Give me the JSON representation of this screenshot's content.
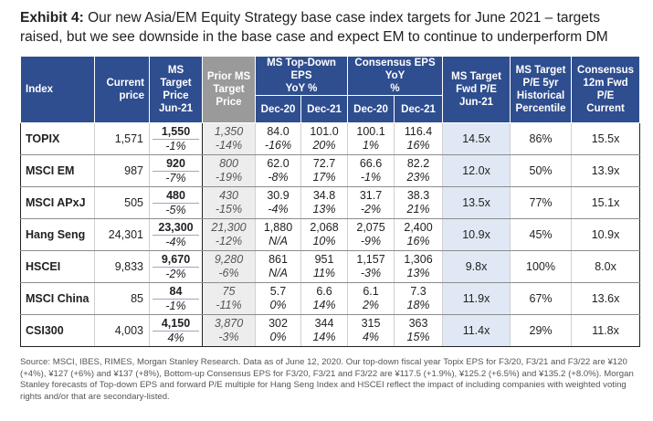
{
  "title": {
    "lead": "Exhibit 4:",
    "text": "Our new Asia/EM Equity Strategy base case index targets for June 2021 – targets raised, but we see downside in the base case and expect EM to continue to underperform DM"
  },
  "headers": {
    "index": "Index",
    "current_price_1": "Current",
    "current_price_2": "price",
    "ms_target_1": "MS",
    "ms_target_2": "Target",
    "ms_target_3": "Price",
    "ms_target_4": "Jun-21",
    "prior_1": "Prior MS",
    "prior_2": "Target",
    "prior_3": "Price",
    "ms_eps_1": "MS Top-Down EPS",
    "ms_eps_2": "YoY %",
    "cons_eps_1": "Consensus EPS YoY",
    "cons_eps_2": "%",
    "dec20": "Dec-20",
    "dec21": "Dec-21",
    "tgt_pe_1": "MS Target",
    "tgt_pe_2": "Fwd P/E",
    "tgt_pe_3": "Jun-21",
    "pct_1": "MS Target",
    "pct_2": "P/E 5yr",
    "pct_3": "Historical",
    "pct_4": "Percentile",
    "cons_pe_1": "Consensus",
    "cons_pe_2": "12m Fwd",
    "cons_pe_3": "P/E",
    "cons_pe_4": "Current"
  },
  "rows": [
    {
      "name": "TOPIX",
      "price": "1,571",
      "ms_target": "1,550",
      "ms_target_pct": "-1%",
      "prior": "1,350",
      "prior_pct": "-14%",
      "ms20": "84.0",
      "ms20_pct": "-16%",
      "ms21": "101.0",
      "ms21_pct": "20%",
      "c20": "100.1",
      "c20_pct": "1%",
      "c21": "116.4",
      "c21_pct": "16%",
      "tgt_pe": "14.5x",
      "percentile": "86%",
      "cons_pe": "15.5x"
    },
    {
      "name": "MSCI EM",
      "price": "987",
      "ms_target": "920",
      "ms_target_pct": "-7%",
      "prior": "800",
      "prior_pct": "-19%",
      "ms20": "62.0",
      "ms20_pct": "-8%",
      "ms21": "72.7",
      "ms21_pct": "17%",
      "c20": "66.6",
      "c20_pct": "-1%",
      "c21": "82.2",
      "c21_pct": "23%",
      "tgt_pe": "12.0x",
      "percentile": "50%",
      "cons_pe": "13.9x"
    },
    {
      "name": "MSCI APxJ",
      "price": "505",
      "ms_target": "480",
      "ms_target_pct": "-5%",
      "prior": "430",
      "prior_pct": "-15%",
      "ms20": "30.9",
      "ms20_pct": "-4%",
      "ms21": "34.8",
      "ms21_pct": "13%",
      "c20": "31.7",
      "c20_pct": "-2%",
      "c21": "38.3",
      "c21_pct": "21%",
      "tgt_pe": "13.5x",
      "percentile": "77%",
      "cons_pe": "15.1x"
    },
    {
      "name": "Hang Seng",
      "price": "24,301",
      "ms_target": "23,300",
      "ms_target_pct": "-4%",
      "prior": "21,300",
      "prior_pct": "-12%",
      "ms20": "1,880",
      "ms20_pct": "N/A",
      "ms21": "2,068",
      "ms21_pct": "10%",
      "c20": "2,075",
      "c20_pct": "-9%",
      "c21": "2,400",
      "c21_pct": "16%",
      "tgt_pe": "10.9x",
      "percentile": "45%",
      "cons_pe": "10.9x"
    },
    {
      "name": "HSCEI",
      "price": "9,833",
      "ms_target": "9,670",
      "ms_target_pct": "-2%",
      "prior": "9,280",
      "prior_pct": "-6%",
      "ms20": "861",
      "ms20_pct": "N/A",
      "ms21": "951",
      "ms21_pct": "11%",
      "c20": "1,157",
      "c20_pct": "-3%",
      "c21": "1,306",
      "c21_pct": "13%",
      "tgt_pe": "9.8x",
      "percentile": "100%",
      "cons_pe": "8.0x"
    },
    {
      "name": "MSCI China",
      "price": "85",
      "ms_target": "84",
      "ms_target_pct": "-1%",
      "prior": "75",
      "prior_pct": "-11%",
      "ms20": "5.7",
      "ms20_pct": "0%",
      "ms21": "6.6",
      "ms21_pct": "14%",
      "c20": "6.1",
      "c20_pct": "2%",
      "c21": "7.3",
      "c21_pct": "18%",
      "tgt_pe": "11.9x",
      "percentile": "67%",
      "cons_pe": "13.6x"
    },
    {
      "name": "CSI300",
      "price": "4,003",
      "ms_target": "4,150",
      "ms_target_pct": "4%",
      "prior": "3,870",
      "prior_pct": "-3%",
      "ms20": "302",
      "ms20_pct": "0%",
      "ms21": "344",
      "ms21_pct": "14%",
      "c20": "315",
      "c20_pct": "4%",
      "c21": "363",
      "c21_pct": "15%",
      "tgt_pe": "11.4x",
      "percentile": "29%",
      "cons_pe": "11.8x"
    }
  ],
  "source": "Source: MSCI, IBES, RIMES, Morgan Stanley Research. Data as of June 12, 2020. Our top-down fiscal year Topix EPS for F3/20, F3/21 and F3/22 are ¥120 (+4%), ¥127 (+6%) and ¥137 (+8%), Bottom-up Consensus EPS for F3/20, F3/21 and F3/22 are ¥117.5 (+1.9%), ¥125.2 (+6.5%) and ¥135.2 (+8.0%). Morgan Stanley forecasts of Top-down EPS and forward P/E multiple for Hang Seng Index and HSCEI reflect the impact of including companies with weighted voting rights and/or that are secondary-listed."
}
